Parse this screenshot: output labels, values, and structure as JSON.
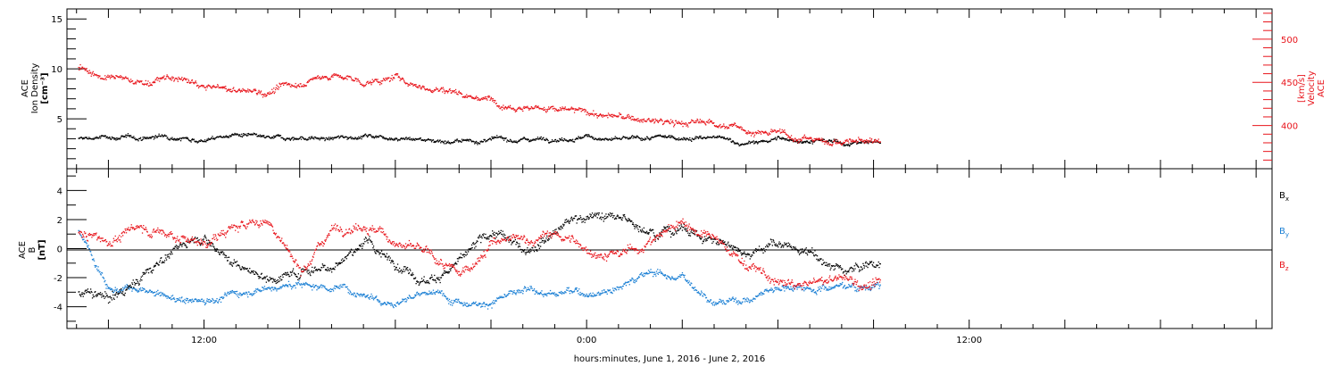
{
  "chart_data": [
    {
      "type": "scatter",
      "panel": "top",
      "ylabel_left": [
        "ACE",
        "Ion Density",
        "[cm⁻³]"
      ],
      "ylabel_right": [
        "ACE",
        "Velocity",
        "[km/s]"
      ],
      "left_yticks": [
        "15",
        "10",
        "5"
      ],
      "right_yticks": [
        "500",
        "450",
        "400"
      ],
      "left_ylim": [
        0,
        16
      ],
      "right_ylim": [
        350,
        535
      ],
      "x_ticks": [
        "12:00",
        "0:00",
        "12:00"
      ],
      "xlim_hours": [
        7.7,
        45.5
      ],
      "data_end_hours": 33.2,
      "series": [
        {
          "color": "#000000",
          "x": [
            8,
            9,
            10,
            11,
            12,
            13,
            14,
            15,
            16,
            17,
            18,
            19,
            20,
            21,
            22,
            23,
            24,
            25,
            26,
            27,
            28,
            29,
            30,
            31,
            32,
            33
          ],
          "y": [
            3.0,
            3.2,
            3.1,
            3.4,
            3.0,
            3.5,
            2.9,
            3.2,
            3.0,
            3.4,
            3.3,
            3.0,
            2.8,
            2.9,
            3.0,
            3.2,
            3.3,
            2.9,
            3.0,
            3.2,
            3.1,
            2.5,
            3.0,
            2.9,
            2.6,
            2.7
          ]
        },
        {
          "color": "#e8141b",
          "x": [
            8,
            9,
            10,
            11,
            12,
            13,
            14,
            15,
            16,
            17,
            18,
            19,
            20,
            21,
            22,
            23,
            24,
            25,
            26,
            27,
            28,
            29,
            30,
            31,
            32,
            33
          ],
          "y": [
            470,
            455,
            450,
            455,
            445,
            440,
            440,
            450,
            460,
            450,
            455,
            445,
            440,
            430,
            425,
            420,
            415,
            410,
            405,
            402,
            405,
            395,
            390,
            385,
            383,
            382
          ]
        }
      ]
    },
    {
      "type": "scatter",
      "panel": "bottom",
      "ylabel_left": [
        "ACE",
        "B",
        "[nT]"
      ],
      "left_yticks": [
        "4",
        "2",
        "0",
        "-2",
        "-4"
      ],
      "ylim": [
        -5.5,
        5.5
      ],
      "x_ticks": [
        "12:00",
        "0:00",
        "12:00"
      ],
      "xlabel": "hours:minutes, June  1, 2016 - June  2, 2016",
      "series": [
        {
          "name": "Bx",
          "color": "#000000",
          "x": [
            8,
            9,
            10,
            11,
            12,
            13,
            14,
            15,
            16,
            17,
            18,
            19,
            20,
            21,
            22,
            23,
            24,
            25,
            26,
            27,
            28,
            29,
            30,
            31,
            32,
            33
          ],
          "y": [
            -3.0,
            -3.5,
            -2.0,
            0.0,
            1.0,
            -1.0,
            -2.0,
            -1.5,
            -1.0,
            0.5,
            -1.0,
            -2.0,
            -1.0,
            1.0,
            0.0,
            1.5,
            2.5,
            2.0,
            1.5,
            1.5,
            0.5,
            0.0,
            0.5,
            -0.5,
            -1.5,
            -1.0
          ]
        },
        {
          "name": "By",
          "color": "#1a7fd4",
          "x": [
            8,
            9,
            10,
            11,
            12,
            13,
            14,
            15,
            16,
            17,
            18,
            19,
            20,
            21,
            22,
            23,
            24,
            25,
            26,
            27,
            28,
            29,
            30,
            31,
            32,
            33
          ],
          "y": [
            1.5,
            -2.5,
            -3.0,
            -3.5,
            -3.5,
            -3.0,
            -2.5,
            -2.5,
            -2.5,
            -3.0,
            -3.5,
            -3.0,
            -3.5,
            -3.5,
            -3.0,
            -3.0,
            -3.0,
            -2.5,
            -1.5,
            -2.0,
            -3.5,
            -3.5,
            -2.5,
            -2.5,
            -2.5,
            -2.5
          ]
        },
        {
          "name": "Bz",
          "color": "#e8141b",
          "x": [
            8,
            9,
            10,
            11,
            12,
            13,
            14,
            15,
            16,
            17,
            18,
            19,
            20,
            21,
            22,
            23,
            24,
            25,
            26,
            27,
            28,
            29,
            30,
            31,
            32,
            33
          ],
          "y": [
            1.0,
            0.5,
            1.5,
            1.0,
            0.5,
            1.5,
            2.0,
            -1.5,
            1.5,
            2.0,
            0.5,
            -0.5,
            -2.0,
            0.5,
            0.5,
            1.0,
            0.0,
            -0.5,
            0.5,
            2.0,
            0.5,
            -1.0,
            -2.5,
            -2.5,
            -2.0,
            -2.5
          ]
        }
      ]
    }
  ],
  "legend": {
    "bx_main": "B",
    "bx_sub": "x",
    "by_main": "B",
    "by_sub": "y",
    "bz_main": "B",
    "bz_sub": "z"
  },
  "xlabel": "hours:minutes, June  1, 2016 - June  2, 2016"
}
